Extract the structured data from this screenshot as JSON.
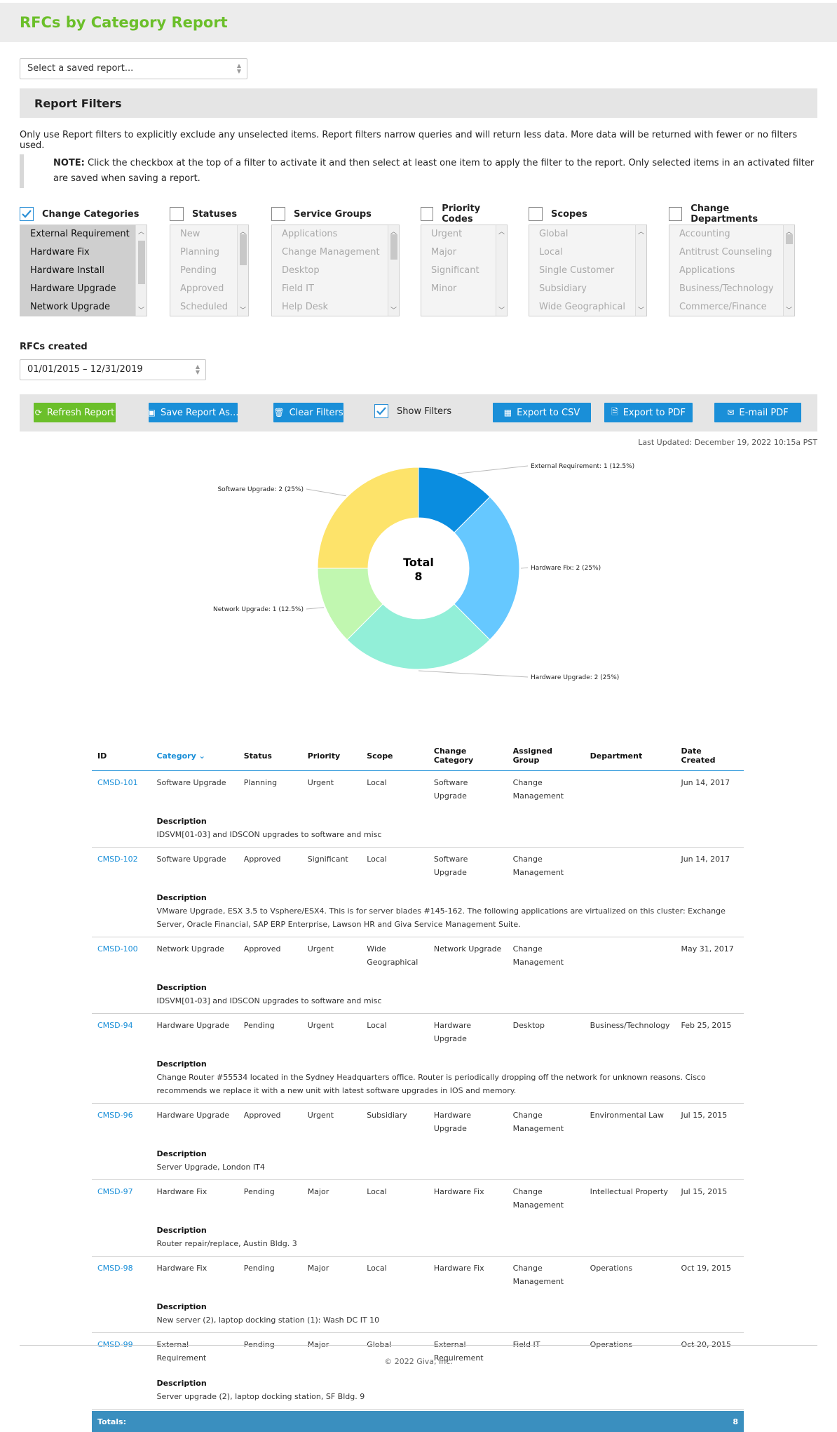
{
  "page": {
    "title": "RFCs by Category Report"
  },
  "saved_report": {
    "placeholder": "Select a saved report..."
  },
  "filters_section": {
    "heading": "Report Filters",
    "intro": "Only use Report filters to explicitly exclude any unselected items. Report filters narrow queries and will return less data. More data will be returned with fewer or no filters used.",
    "note_label": "NOTE:",
    "note_text": " Click the checkbox at the top of a filter to activate it and then select at least one item to apply the filter to the report. Only selected items in an activated filter are saved when saving a report."
  },
  "filters": [
    {
      "name": "Change Categories",
      "checked": true,
      "items": [
        "External Requirement",
        "Hardware Fix",
        "Hardware Install",
        "Hardware Upgrade",
        "Network Upgrade"
      ]
    },
    {
      "name": "Statuses",
      "checked": false,
      "items": [
        "New",
        "Planning",
        "Pending",
        "Approved",
        "Scheduled"
      ]
    },
    {
      "name": "Service Groups",
      "checked": false,
      "items": [
        "Applications",
        "Change Management",
        "Desktop",
        "Field IT",
        "Help Desk"
      ]
    },
    {
      "name": "Priority Codes",
      "checked": false,
      "items": [
        "Urgent",
        "Major",
        "Significant",
        "Minor"
      ]
    },
    {
      "name": "Scopes",
      "checked": false,
      "items": [
        "Global",
        "Local",
        "Single Customer",
        "Subsidiary",
        "Wide Geographical"
      ]
    },
    {
      "name": "Change Departments",
      "checked": false,
      "items": [
        "Accounting",
        "Antitrust Counseling",
        "Applications",
        "Business/Technology",
        "Commerce/Finance"
      ]
    }
  ],
  "rfcs_created": {
    "label": "RFCs created",
    "value": "01/01/2015 – 12/31/2019"
  },
  "toolbar": {
    "refresh": "Refresh Report",
    "save": "Save Report As...",
    "clear": "Clear Filters",
    "show_filters": "Show Filters",
    "show_filters_checked": true,
    "export_csv": "Export to CSV",
    "export_pdf": "Export to PDF",
    "email_pdf": "E-mail PDF"
  },
  "last_updated": "Last Updated: December 19, 2022 10:15a PST",
  "chart_data": {
    "type": "pie",
    "center_label": "Total",
    "center_value": "8",
    "slices": [
      {
        "label": "External Requirement",
        "value": 1,
        "percent": "12.5%",
        "color": "#0a8de0",
        "text": "External Requirement: 1 (12.5%)"
      },
      {
        "label": "Hardware Fix",
        "value": 2,
        "percent": "25%",
        "color": "#66c8ff",
        "text": "Hardware Fix: 2 (25%)"
      },
      {
        "label": "Hardware Upgrade",
        "value": 2,
        "percent": "25%",
        "color": "#92efd8",
        "text": "Hardware Upgrade: 2 (25%)"
      },
      {
        "label": "Network Upgrade",
        "value": 1,
        "percent": "12.5%",
        "color": "#c1f7b0",
        "text": "Network Upgrade: 1 (12.5%)"
      },
      {
        "label": "Software Upgrade",
        "value": 2,
        "percent": "25%",
        "color": "#fde36a",
        "text": "Software Upgrade: 2 (25%)"
      }
    ]
  },
  "table": {
    "columns": [
      "ID",
      "Category",
      "Status",
      "Priority",
      "Scope",
      "Change Category",
      "Assigned Group",
      "Department",
      "Date Created"
    ],
    "description_label": "Description",
    "rows": [
      {
        "id": "CMSD-101",
        "category": "Software Upgrade",
        "status": "Planning",
        "priority": "Urgent",
        "scope": "Local",
        "change_category": "Software Upgrade",
        "group": "Change Management",
        "department": "",
        "date": "Jun 14, 2017",
        "description": "IDSVM[01-03] and IDSCON upgrades to software and misc"
      },
      {
        "id": "CMSD-102",
        "category": "Software Upgrade",
        "status": "Approved",
        "priority": "Significant",
        "scope": "Local",
        "change_category": "Software Upgrade",
        "group": "Change Management",
        "department": "",
        "date": "Jun 14, 2017",
        "description": "VMware Upgrade, ESX 3.5 to Vsphere/ESX4. This is for server blades #145-162. The following applications are virtualized on this cluster: Exchange Server, Oracle Financial, SAP ERP Enterprise, Lawson HR and Giva Service Management Suite."
      },
      {
        "id": "CMSD-100",
        "category": "Network Upgrade",
        "status": "Approved",
        "priority": "Urgent",
        "scope": "Wide Geographical",
        "change_category": "Network Upgrade",
        "group": "Change Management",
        "department": "",
        "date": "May 31, 2017",
        "description": "IDSVM[01-03] and IDSCON upgrades to software and misc"
      },
      {
        "id": "CMSD-94",
        "category": "Hardware Upgrade",
        "status": "Pending",
        "priority": "Urgent",
        "scope": "Local",
        "change_category": "Hardware Upgrade",
        "group": "Desktop",
        "department": "Business/Technology",
        "date": "Feb 25, 2015",
        "description": "Change Router #55534 located in the Sydney Headquarters office. Router is periodically dropping off the network for unknown reasons. Cisco recommends we replace it with a new unit with latest software upgrades in IOS and memory."
      },
      {
        "id": "CMSD-96",
        "category": "Hardware Upgrade",
        "status": "Approved",
        "priority": "Urgent",
        "scope": "Subsidiary",
        "change_category": "Hardware Upgrade",
        "group": "Change Management",
        "department": "Environmental Law",
        "date": "Jul 15, 2015",
        "description": "Server Upgrade, London IT4"
      },
      {
        "id": "CMSD-97",
        "category": "Hardware Fix",
        "status": "Pending",
        "priority": "Major",
        "scope": "Local",
        "change_category": "Hardware Fix",
        "group": "Change Management",
        "department": "Intellectual Property",
        "date": "Jul 15, 2015",
        "description": "Router repair/replace, Austin Bldg. 3"
      },
      {
        "id": "CMSD-98",
        "category": "Hardware Fix",
        "status": "Pending",
        "priority": "Major",
        "scope": "Local",
        "change_category": "Hardware Fix",
        "group": "Change Management",
        "department": "Operations",
        "date": "Oct 19, 2015",
        "description": "New server (2), laptop docking station (1): Wash DC IT 10"
      },
      {
        "id": "CMSD-99",
        "category": "External Requirement",
        "status": "Pending",
        "priority": "Major",
        "scope": "Global",
        "change_category": "External Requirement",
        "group": "Field IT",
        "department": "Operations",
        "date": "Oct 20, 2015",
        "description": "Server upgrade (2), laptop docking station, SF Bldg. 9"
      }
    ],
    "totals_label": "Totals:",
    "totals_value": "8"
  },
  "footer": "© 2022 Giva, Inc."
}
